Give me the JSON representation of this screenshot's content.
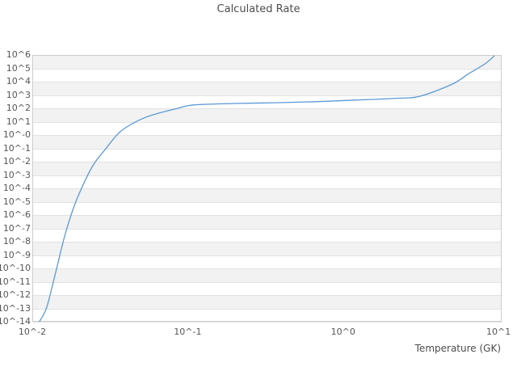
{
  "title": "Calculated Rate",
  "chart_data": {
    "type": "line",
    "title": "Calculated Rate",
    "xlabel": "Temperature (GK)",
    "ylabel": "",
    "x_scale": "log",
    "y_scale": "log",
    "xlim_log10": [
      -2,
      1.02
    ],
    "ylim_log10": [
      -14,
      6
    ],
    "grid": "horizontal-decade-bands",
    "legend": "none",
    "xtick_values": [
      0.01,
      0.1,
      1,
      10
    ],
    "xtick_labels": [
      "10^-2",
      "10^-1",
      "10^0",
      "10^1"
    ],
    "ytick_values_log10": [
      6,
      5,
      4,
      3,
      2,
      1,
      0,
      -1,
      -2,
      -3,
      -4,
      -5,
      -6,
      -7,
      -8,
      -9,
      -10,
      -11,
      -12,
      -13,
      -14
    ],
    "ytick_labels": [
      "10^6",
      "10^5",
      "10^4",
      "10^3",
      "10^2",
      "10^1",
      "10^-0",
      "10^-1",
      "10^-2",
      "10^-3",
      "10^-4",
      "10^-5",
      "10^-6",
      "10^-7",
      "10^-8",
      "10^-9",
      "10^-10",
      "10^-11",
      "10^-12",
      "10^-13",
      "10^-14"
    ],
    "colors": {
      "line": "#5b99d5",
      "band": "#f2f2f2",
      "band_alt": "#ffffff",
      "gridline": "#e2e2e2",
      "border": "#cccccc",
      "text": "#555555",
      "title_text": "#4c4c4c"
    },
    "series": [
      {
        "name": "Calculated Rate",
        "points": [
          [
            0.0111,
            1e-14
          ],
          [
            0.0124,
            1.3e-13
          ],
          [
            0.0143,
            8.7e-11
          ],
          [
            0.0161,
            2.3e-08
          ],
          [
            0.0182,
            2.3e-06
          ],
          [
            0.0205,
            7.6e-05
          ],
          [
            0.0245,
            0.005
          ],
          [
            0.0294,
            0.081
          ],
          [
            0.0373,
            2.0
          ],
          [
            0.0535,
            21
          ],
          [
            0.0863,
            100
          ],
          [
            0.11,
            180
          ],
          [
            0.2,
            230
          ],
          [
            0.363,
            263
          ],
          [
            0.661,
            316
          ],
          [
            1.2,
            417
          ],
          [
            2.19,
            562
          ],
          [
            3.13,
            813
          ],
          [
            5.05,
            6600
          ],
          [
            6.43,
            40000
          ],
          [
            8.17,
            214000
          ],
          [
            9.4,
            870000
          ]
        ]
      }
    ]
  }
}
